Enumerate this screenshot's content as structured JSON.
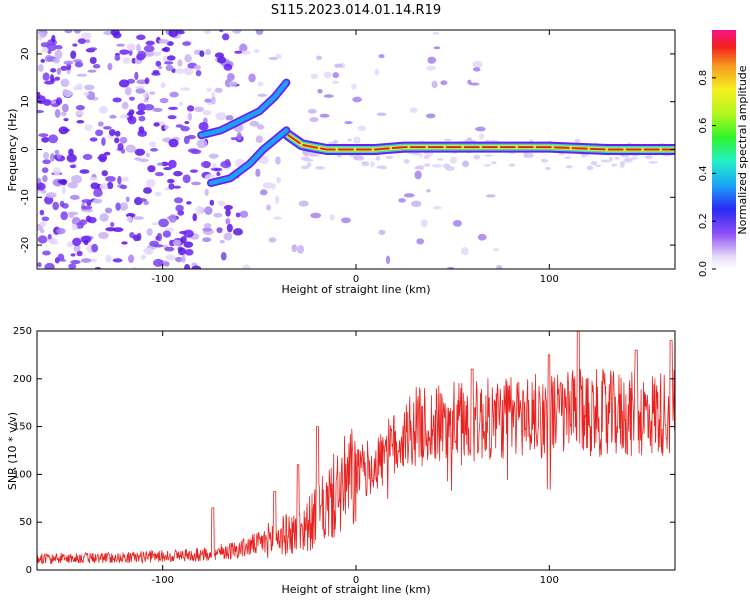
{
  "figure_title": "S115.2023.014.01.14.R19",
  "colors": {
    "snr_line": "#e8221f",
    "spectrum_low": "#b39ae8",
    "spectrum_mid": "#6a1ef5",
    "spectrum_peak": "#e8221f"
  },
  "chart_data": [
    {
      "type": "heatmap",
      "title": "S115.2023.014.01.14.R19",
      "xlabel": "Height of straight line (km)",
      "ylabel": "Frequency (Hz)",
      "xlim": [
        -165,
        165
      ],
      "ylim": [
        -25,
        25
      ],
      "xticks": [
        -100,
        0,
        100
      ],
      "yticks": [
        -20,
        -10,
        0,
        10,
        20
      ],
      "colorbar": {
        "label": "Normalized spectral amplitude",
        "range": [
          0.0,
          1.0
        ],
        "ticks": [
          "0.0",
          "0.2",
          "0.4",
          "0.6",
          "0.8"
        ],
        "tick_values": [
          0.0,
          0.2,
          0.4,
          0.6,
          0.8
        ],
        "colormap": "gist_ncar"
      },
      "ridges": [
        {
          "x": [
            -35,
            -28,
            -22,
            -15,
            -8,
            0,
            10,
            25,
            60,
            100,
            130,
            165
          ],
          "y": [
            3,
            1,
            0.5,
            0,
            0,
            0,
            0,
            0.5,
            0.5,
            0.5,
            0,
            0
          ],
          "amplitude": 0.9
        },
        {
          "x": [
            -80,
            -70,
            -60,
            -50,
            -42,
            -36
          ],
          "y": [
            3,
            4,
            6,
            8,
            11,
            14
          ],
          "amplitude": 0.4
        },
        {
          "x": [
            -75,
            -65,
            -55,
            -48,
            -42,
            -36
          ],
          "y": [
            -7,
            -6,
            -3,
            0,
            2,
            4
          ],
          "amplitude": 0.35
        }
      ]
    },
    {
      "type": "line",
      "xlabel": "Height of straight line (km)",
      "ylabel": "SNR (10 * v/v)",
      "xlim": [
        -165,
        165
      ],
      "ylim": [
        0,
        250
      ],
      "xticks": [
        -100,
        0,
        100
      ],
      "yticks": [
        0,
        50,
        100,
        150,
        200,
        250
      ],
      "envelope": {
        "x": [
          -165,
          -120,
          -80,
          -60,
          -50,
          -40,
          -30,
          -20,
          -10,
          0,
          10,
          20,
          30,
          40,
          50,
          60,
          80,
          100,
          120,
          140,
          165
        ],
        "y": [
          12,
          13,
          16,
          22,
          28,
          35,
          40,
          55,
          80,
          100,
          110,
          130,
          150,
          150,
          155,
          155,
          160,
          162,
          165,
          162,
          165
        ]
      },
      "peaks": [
        {
          "x": -74,
          "y": 65
        },
        {
          "x": -42,
          "y": 82
        },
        {
          "x": -30,
          "y": 110
        },
        {
          "x": -20,
          "y": 150
        },
        {
          "x": 60,
          "y": 210
        },
        {
          "x": 100,
          "y": 225
        },
        {
          "x": 115,
          "y": 250
        },
        {
          "x": 145,
          "y": 230
        },
        {
          "x": 163,
          "y": 240
        }
      ]
    }
  ]
}
